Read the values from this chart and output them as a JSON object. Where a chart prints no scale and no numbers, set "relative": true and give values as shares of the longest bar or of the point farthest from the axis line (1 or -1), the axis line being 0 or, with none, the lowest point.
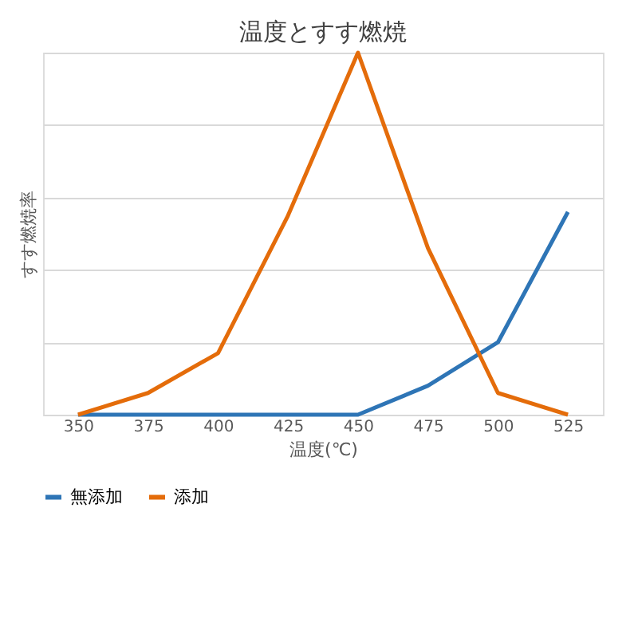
{
  "chart_data": {
    "type": "line",
    "title": "温度とすす燃焼",
    "xlabel": "温度(℃)",
    "ylabel": "すす燃焼率",
    "categories": [
      "350",
      "375",
      "400",
      "425",
      "450",
      "475",
      "500",
      "525"
    ],
    "relative": true,
    "grid": "y",
    "legend": "bottom",
    "marker": "none",
    "line_style": "solid",
    "series": [
      {
        "name": "無添加",
        "color": "#2e75b6",
        "values": [
          0,
          0,
          0,
          0,
          0,
          0.08,
          0.2,
          0.56
        ]
      },
      {
        "name": "添加",
        "color": "#e46c0a",
        "values": [
          0,
          0.06,
          0.17,
          0.55,
          1,
          0.46,
          0.06,
          0
        ]
      }
    ]
  }
}
